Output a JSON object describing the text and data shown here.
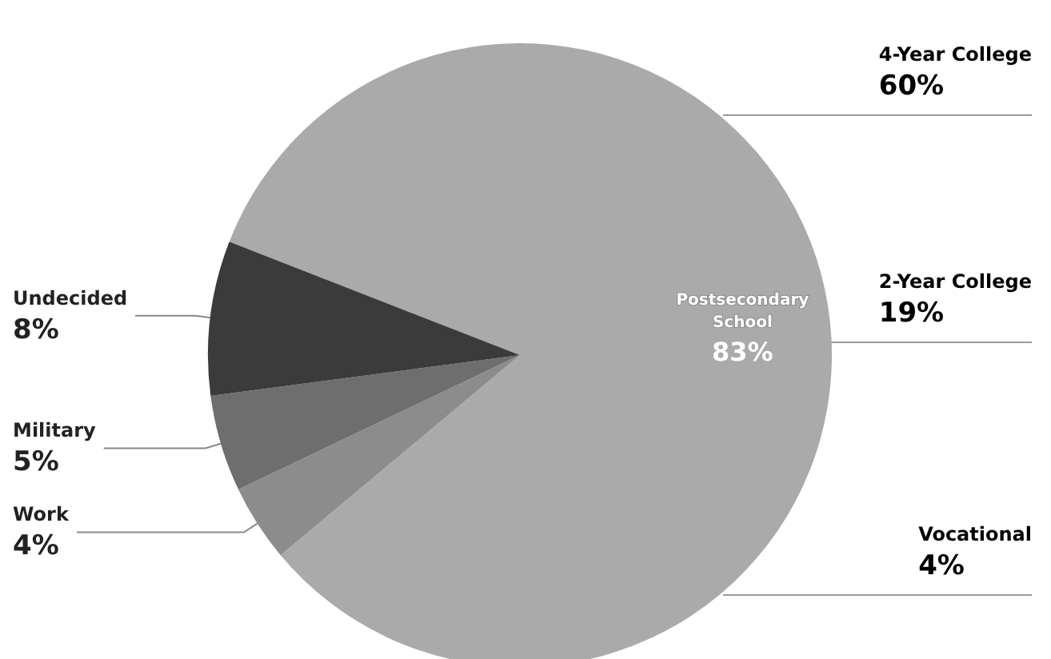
{
  "chart_data": {
    "type": "pie",
    "categories": [
      "Postsecondary School",
      "Work",
      "Military",
      "Undecided"
    ],
    "values": [
      83,
      4,
      5,
      8
    ],
    "colors": [
      "#aaaaaa",
      "#8c8c8c",
      "#6e6e6e",
      "#3b3b3b"
    ],
    "value_labels": [
      "83%",
      "4%",
      "5%",
      "8%"
    ],
    "legend": false,
    "annotations": [
      "4-Year College\n60%",
      "2-Year College\n19%",
      "Vocational\n4%"
    ]
  }
}
